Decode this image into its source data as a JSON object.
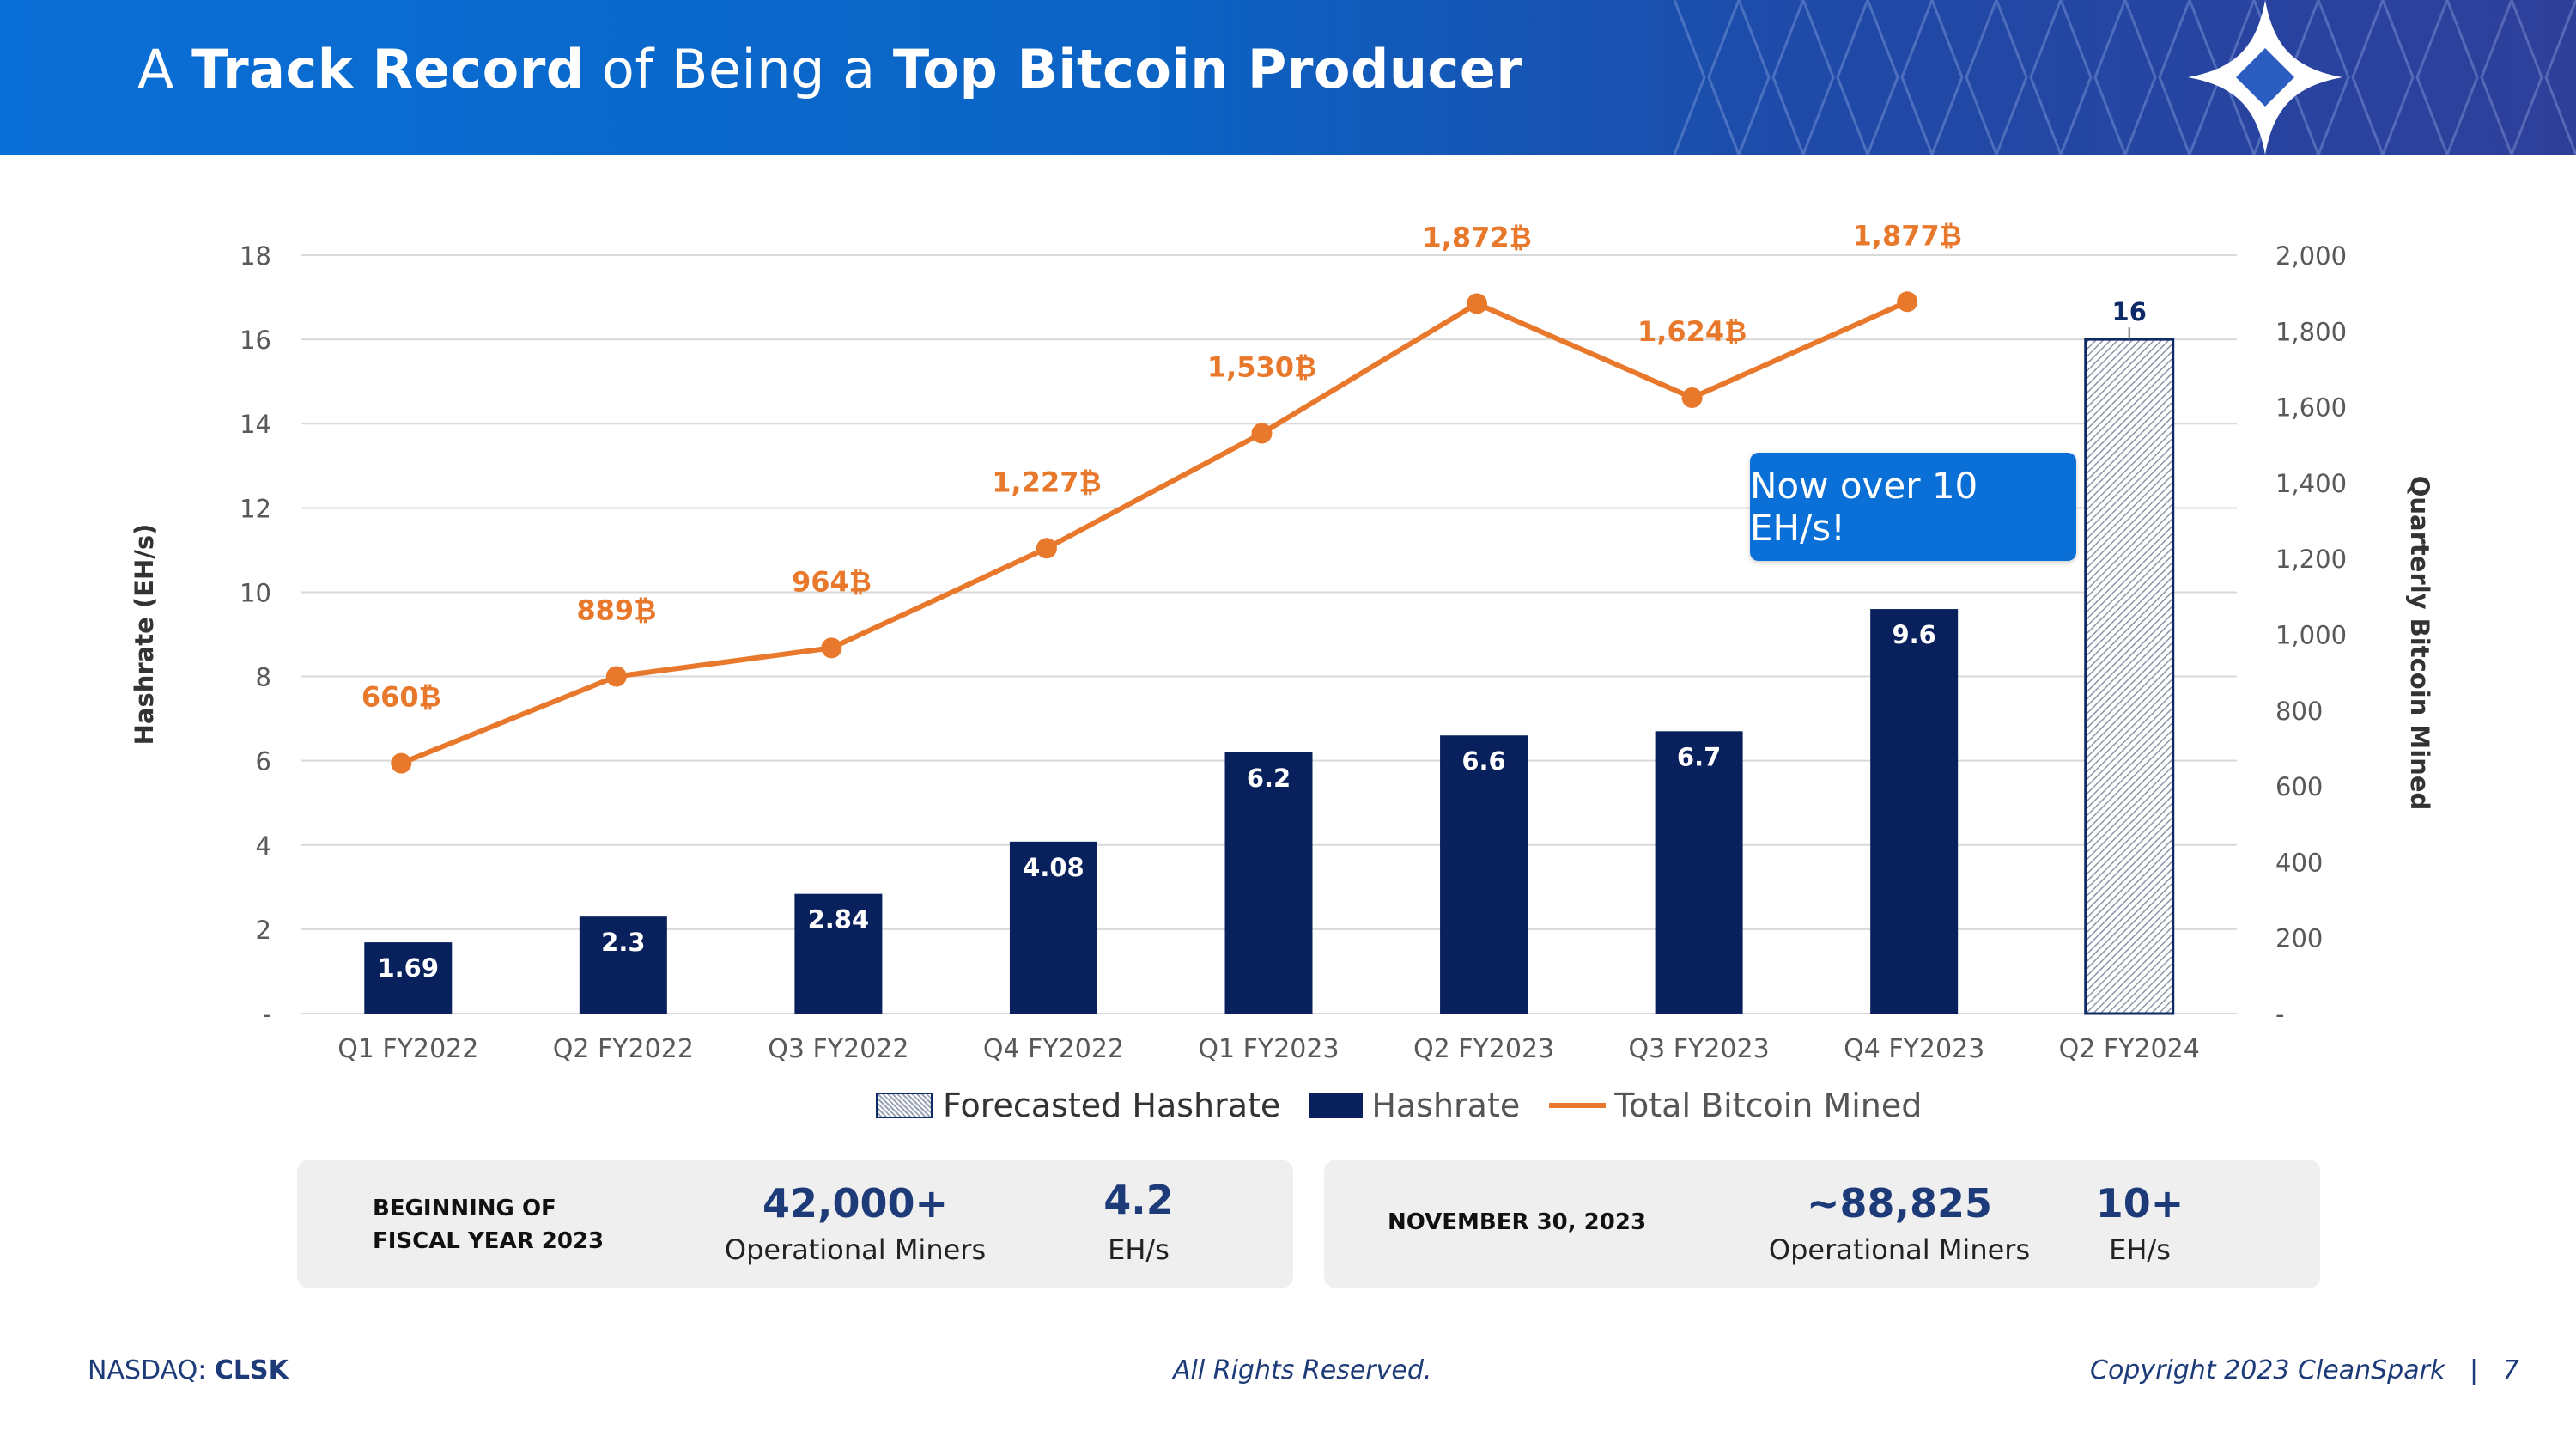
{
  "header": {
    "title_a": "A ",
    "title_b": "Track Record",
    "title_c": " of Being a ",
    "title_d": "Top Bitcoin Producer"
  },
  "callout": "Now over 10 EH/s!",
  "chart_data": {
    "type": "bar",
    "categories": [
      "Q1 FY2022",
      "Q2 FY2022",
      "Q3 FY2022",
      "Q4 FY2022",
      "Q1 FY2023",
      "Q2 FY2023",
      "Q3 FY2023",
      "Q4 FY2023",
      "Q2 FY2024"
    ],
    "series": [
      {
        "name": "Hashrate",
        "type": "bar",
        "axis": "left",
        "color": "#08205c",
        "values": [
          1.69,
          2.3,
          2.84,
          4.08,
          6.2,
          6.6,
          6.7,
          9.6,
          null
        ],
        "labels": [
          "1.69",
          "2.3",
          "2.84",
          "4.08",
          "6.2",
          "6.6",
          "6.7",
          "9.6",
          ""
        ]
      },
      {
        "name": "Forecasted Hashrate",
        "type": "bar",
        "axis": "left",
        "pattern": "hatched",
        "values": [
          null,
          null,
          null,
          null,
          null,
          null,
          null,
          null,
          16
        ],
        "labels": [
          "",
          "",
          "",
          "",
          "",
          "",
          "",
          "",
          "16"
        ]
      },
      {
        "name": "Total Bitcoin Mined",
        "type": "line",
        "axis": "right",
        "color": "#e8792c",
        "values": [
          660,
          889,
          964,
          1227,
          1530,
          1872,
          1624,
          1877,
          null
        ],
        "labels": [
          "660₿",
          "889₿",
          "964₿",
          "1,227₿",
          "1,530₿",
          "1,872₿",
          "1,624₿",
          "1,877₿",
          ""
        ]
      }
    ],
    "ylabel": "Hashrate (EH/s)",
    "y2label": "Quarterly Bitcoin Mined",
    "ylim": [
      0,
      18
    ],
    "y2lim": [
      0,
      2000
    ],
    "yticks": [
      "-",
      "2",
      "4",
      "6",
      "8",
      "10",
      "12",
      "14",
      "16",
      "18"
    ],
    "y2ticks": [
      "-",
      "200",
      "400",
      "600",
      "800",
      "1,000",
      "1,200",
      "1,400",
      "1,600",
      "1,800",
      "2,000"
    ],
    "grid": true,
    "legend_position": "bottom"
  },
  "legend": {
    "forecast": "Forecasted Hashrate",
    "hashrate": "Hashrate",
    "btc": "Total Bitcoin Mined"
  },
  "stats": {
    "left": {
      "label": "BEGINNING OF FISCAL YEAR 2023",
      "miners_value": "42,000+",
      "miners_label": "Operational Miners",
      "hash_value": "4.2",
      "hash_label": "EH/s"
    },
    "right": {
      "label": "NOVEMBER 30, 2023",
      "miners_value": "~88,825",
      "miners_label": "Operational Miners",
      "hash_value": "10+",
      "hash_label": "EH/s"
    }
  },
  "footer": {
    "ticker_prefix": "NASDAQ: ",
    "ticker": "CLSK",
    "center": "All Rights Reserved.",
    "right": "Copyright 2023 CleanSpark",
    "separator": "|",
    "page": "7"
  }
}
